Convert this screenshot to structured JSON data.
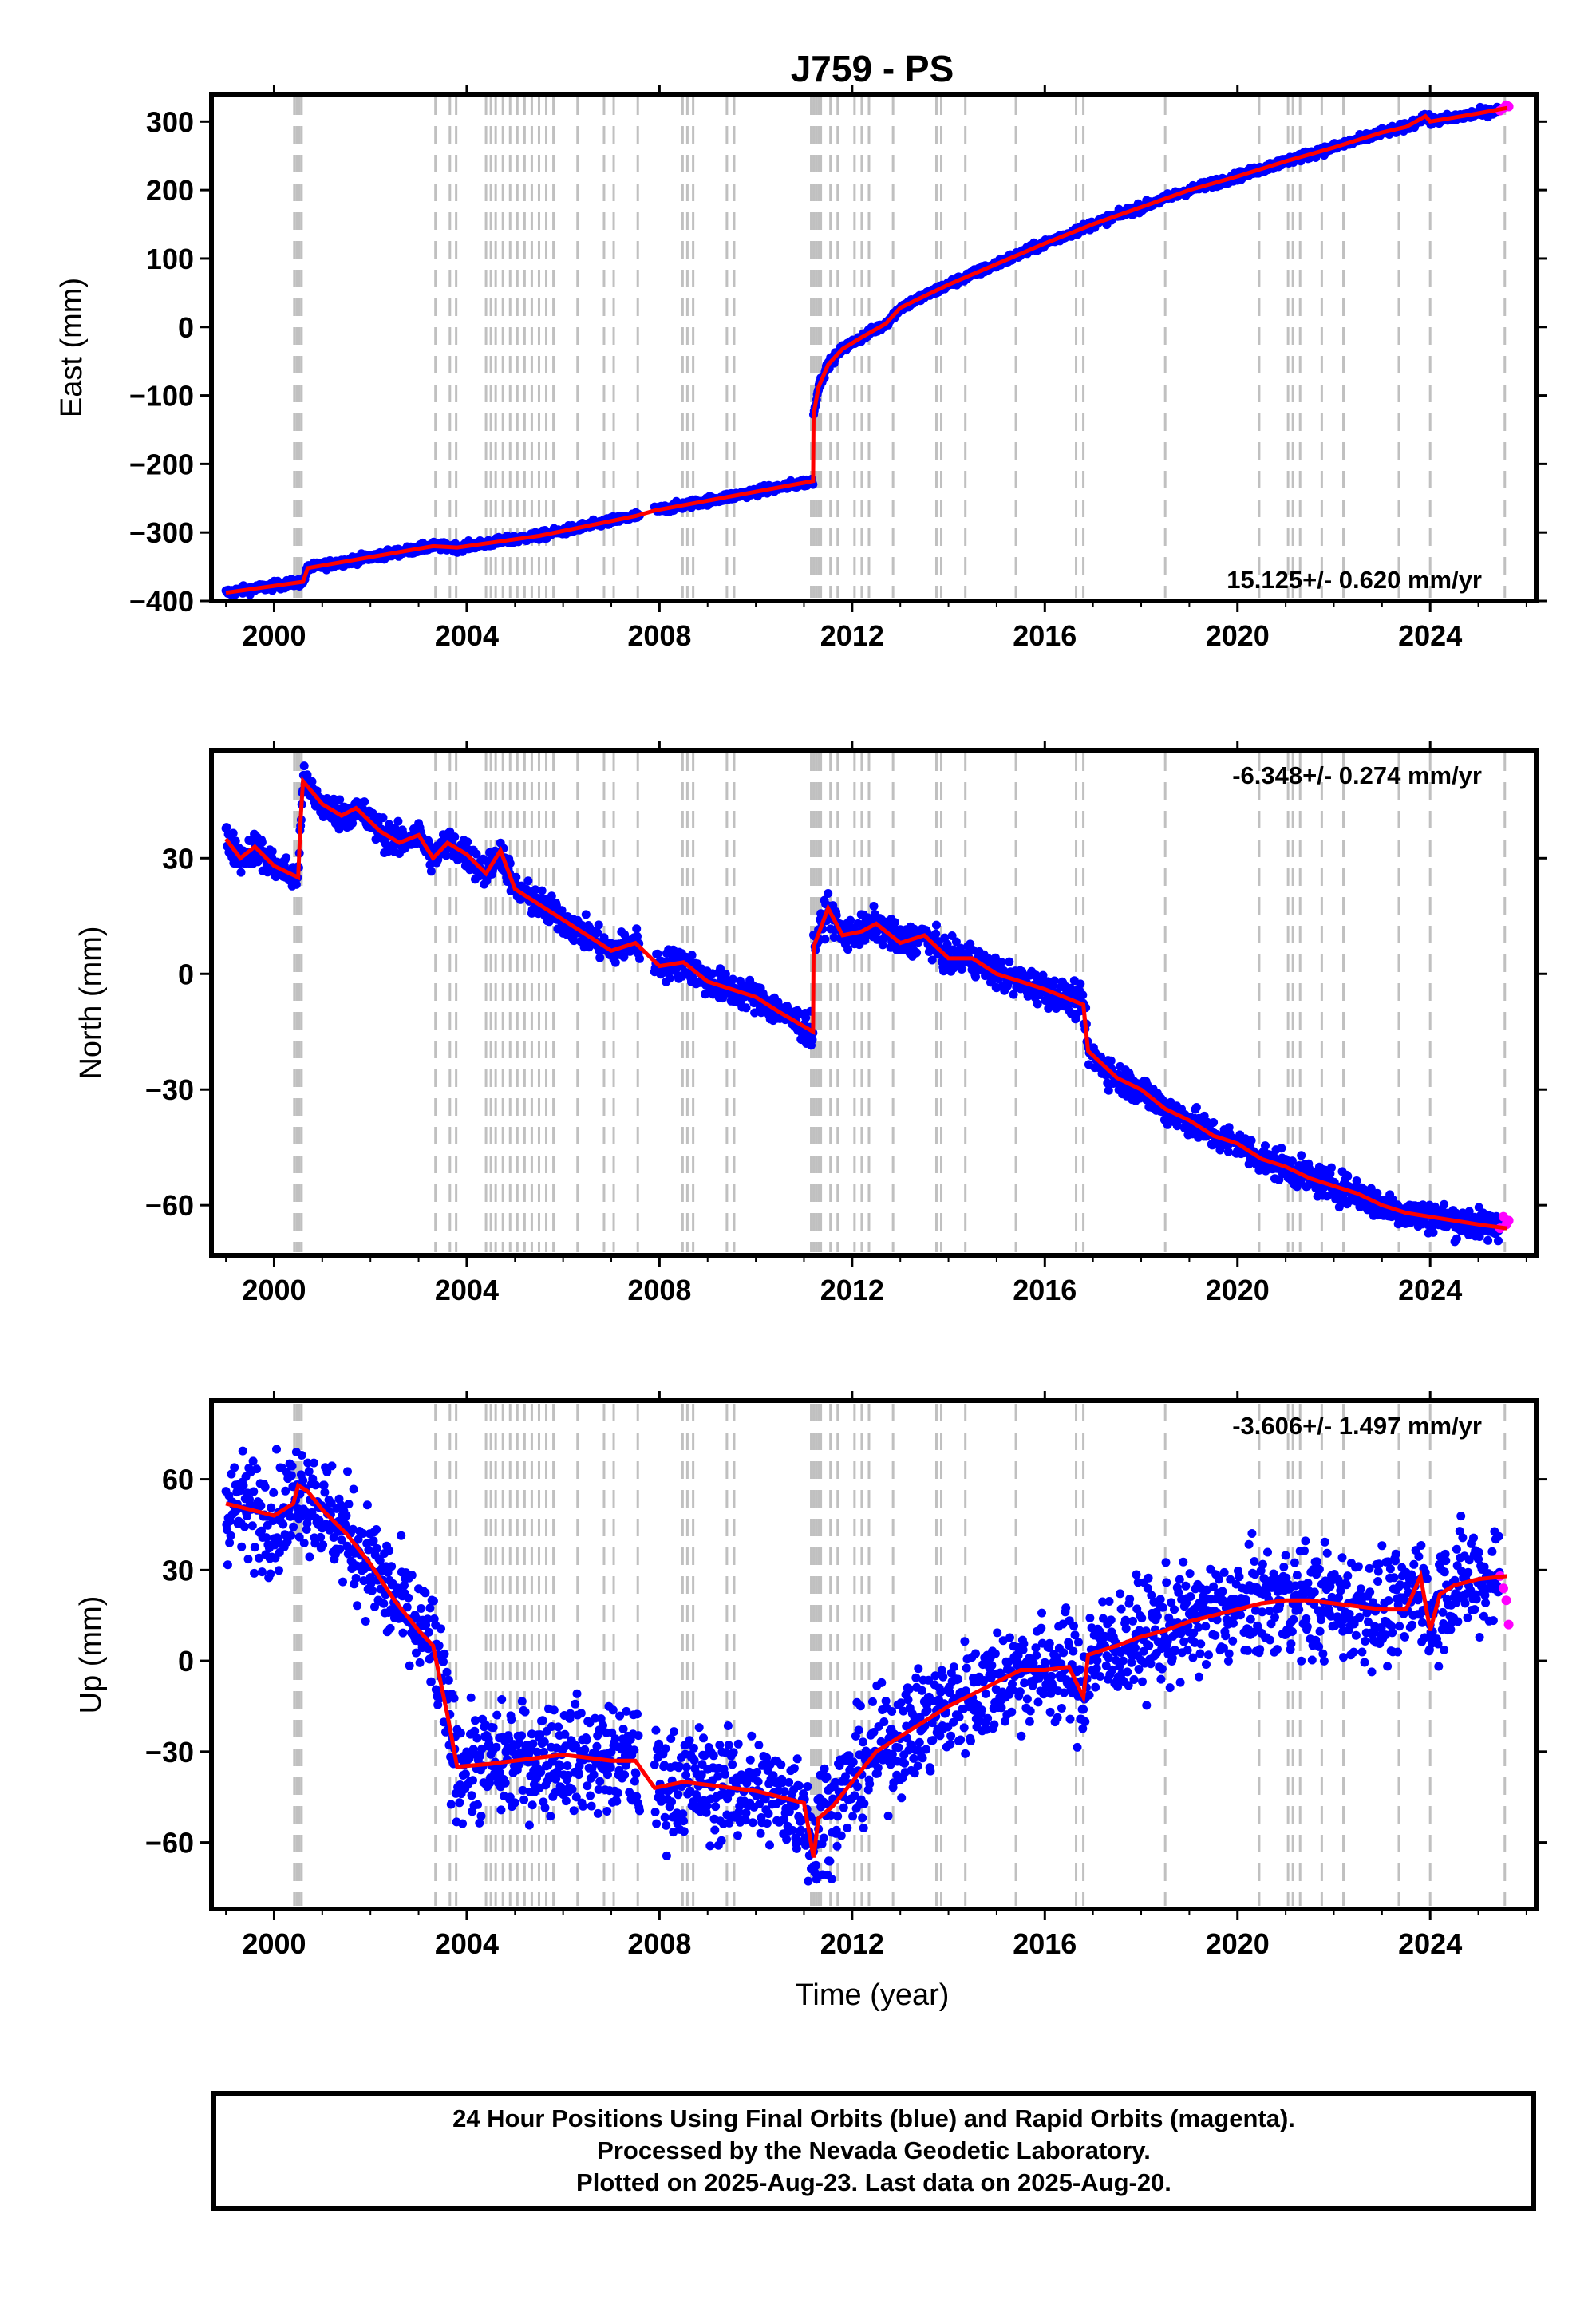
{
  "title": "J759 - PS",
  "xlabel": "Time (year)",
  "footer": {
    "line1": "24 Hour Positions Using Final Orbits (blue) and Rapid Orbits (magenta).",
    "line2": "Processed by the Nevada Geodetic Laboratory.",
    "line3": "Plotted on 2025-Aug-23. Last data on 2025-Aug-20."
  },
  "colors": {
    "final": "#0000ff",
    "rapid": "#ff00ff",
    "model": "#ff0000",
    "step_lines": "#c0c0c0"
  },
  "chart_data": [
    {
      "type": "scatter",
      "ylabel": "East (mm)",
      "rate_label": "15.125+/- 0.620 mm/yr",
      "rate_position": "bottom-right",
      "xlim": [
        1998.7,
        2026.2
      ],
      "ylim": [
        -400,
        340
      ],
      "yticks": [
        300,
        200,
        100,
        0,
        -100,
        -200,
        -300,
        -400
      ],
      "xticks": [
        2000,
        2004,
        2008,
        2012,
        2016,
        2020,
        2024
      ],
      "noise": 3,
      "model_x": [
        1999.0,
        2000.6,
        2000.7,
        2003.3,
        2003.8,
        2005.5,
        2007.5,
        2007.9,
        2011.19,
        2011.2,
        2011.3,
        2011.5,
        2011.8,
        2012.2,
        2012.7,
        2013.0,
        2014.0,
        2015.0,
        2016.0,
        2017.0,
        2018.0,
        2019.0,
        2020.0,
        2021.0,
        2022.0,
        2023.0,
        2023.5,
        2023.9,
        2024.0,
        2025.0,
        2025.6
      ],
      "model_y": [
        -388,
        -372,
        -352,
        -320,
        -322,
        -305,
        -276,
        -268,
        -225,
        -128,
        -88,
        -55,
        -32,
        -15,
        5,
        28,
        62,
        92,
        122,
        150,
        175,
        200,
        220,
        242,
        262,
        284,
        292,
        308,
        300,
        312,
        320
      ],
      "rapid_x": [
        2025.45,
        2025.52,
        2025.58,
        2025.63
      ],
      "rapid_y": [
        316,
        320,
        324,
        322
      ]
    },
    {
      "type": "scatter",
      "ylabel": "North (mm)",
      "rate_label": "-6.348+/- 0.274 mm/yr",
      "rate_position": "top-right",
      "xlim": [
        1998.7,
        2026.2
      ],
      "ylim": [
        -73,
        58
      ],
      "yticks": [
        30,
        0,
        -30,
        -60
      ],
      "xticks": [
        2000,
        2004,
        2008,
        2012,
        2016,
        2020,
        2024
      ],
      "noise": 2,
      "model_x": [
        1999.0,
        1999.3,
        1999.6,
        2000.0,
        2000.5,
        2000.55,
        2000.6,
        2001.0,
        2001.4,
        2001.7,
        2002.2,
        2002.6,
        2003.0,
        2003.3,
        2003.6,
        2004.0,
        2004.4,
        2004.7,
        2005.0,
        2005.5,
        2006.0,
        2006.5,
        2007.0,
        2007.5,
        2008.0,
        2008.5,
        2009.0,
        2009.5,
        2010.0,
        2010.5,
        2011.19,
        2011.2,
        2011.5,
        2011.8,
        2012.2,
        2012.5,
        2013.0,
        2013.5,
        2014.0,
        2014.5,
        2015.0,
        2015.5,
        2016.0,
        2016.6,
        2016.8,
        2016.9,
        2017.5,
        2018.0,
        2018.5,
        2019.0,
        2019.5,
        2020.0,
        2020.5,
        2021.0,
        2021.5,
        2022.0,
        2022.5,
        2023.0,
        2023.5,
        2024.0,
        2024.5,
        2025.0,
        2025.6
      ],
      "model_y": [
        35,
        30,
        33,
        28,
        25,
        40,
        50,
        44,
        41,
        43,
        37,
        34,
        36,
        30,
        34,
        31,
        26,
        32,
        22,
        18,
        14,
        10,
        6,
        8,
        2,
        3,
        -2,
        -4,
        -6,
        -10,
        -15,
        7,
        17,
        10,
        11,
        13,
        8,
        10,
        4,
        4,
        0,
        -2,
        -4,
        -7,
        -8,
        -20,
        -27,
        -30,
        -35,
        -38,
        -42,
        -44,
        -48,
        -50,
        -53,
        -55,
        -57,
        -60,
        -62,
        -63,
        -64,
        -65,
        -66
      ],
      "rapid_x": [
        2025.45,
        2025.52,
        2025.58,
        2025.63
      ],
      "rapid_y": [
        -66,
        -63,
        -65,
        -64
      ]
    },
    {
      "type": "scatter",
      "ylabel": "Up (mm)",
      "rate_label": "-3.606+/- 1.497 mm/yr",
      "rate_position": "top-right",
      "xlim": [
        1998.7,
        2026.2
      ],
      "ylim": [
        -82,
        86
      ],
      "yticks": [
        60,
        30,
        0,
        -30,
        -60
      ],
      "xticks": [
        2000,
        2004,
        2008,
        2012,
        2016,
        2020,
        2024
      ],
      "noise": 9,
      "model_x": [
        1999.0,
        1999.5,
        2000.0,
        2000.4,
        2000.5,
        2000.7,
        2001.0,
        2001.5,
        2002.0,
        2002.5,
        2003.0,
        2003.3,
        2003.6,
        2003.8,
        2004.5,
        2005.0,
        2005.5,
        2006.0,
        2006.5,
        2007.0,
        2007.5,
        2007.9,
        2008.5,
        2009.0,
        2009.5,
        2010.0,
        2010.5,
        2011.0,
        2011.2,
        2011.3,
        2011.6,
        2012.0,
        2012.5,
        2013.0,
        2013.5,
        2014.0,
        2014.5,
        2015.0,
        2015.5,
        2016.0,
        2016.5,
        2016.8,
        2016.9,
        2017.5,
        2018.0,
        2018.5,
        2019.0,
        2019.5,
        2020.0,
        2020.5,
        2021.0,
        2021.5,
        2022.0,
        2022.5,
        2023.0,
        2023.5,
        2023.8,
        2024.0,
        2024.2,
        2024.5,
        2025.0,
        2025.6
      ],
      "model_y": [
        52,
        50,
        48,
        52,
        58,
        56,
        50,
        42,
        32,
        20,
        10,
        5,
        -18,
        -35,
        -34,
        -33,
        -32,
        -31,
        -32,
        -33,
        -33,
        -42,
        -40,
        -41,
        -42,
        -43,
        -45,
        -47,
        -65,
        -52,
        -48,
        -40,
        -30,
        -25,
        -20,
        -15,
        -11,
        -7,
        -3,
        -3,
        -2,
        -12,
        2,
        5,
        8,
        10,
        13,
        15,
        17,
        19,
        20,
        20,
        19,
        18,
        17,
        17,
        28,
        10,
        22,
        25,
        27,
        28
      ],
      "rapid_x": [
        2025.45,
        2025.52,
        2025.58,
        2025.63
      ],
      "rapid_y": [
        28,
        24,
        20,
        12
      ]
    }
  ],
  "step_years": [
    2000.42,
    2000.47,
    2000.52,
    2000.57,
    2003.35,
    2003.65,
    2003.78,
    2004.4,
    2004.5,
    2004.6,
    2004.75,
    2004.9,
    2005.05,
    2005.2,
    2005.35,
    2005.5,
    2005.65,
    2005.8,
    2006.3,
    2006.85,
    2007.05,
    2007.55,
    2008.48,
    2008.58,
    2008.7,
    2009.4,
    2009.55,
    2011.15,
    2011.2,
    2011.25,
    2011.3,
    2011.35,
    2011.55,
    2011.7,
    2012.05,
    2012.2,
    2012.35,
    2012.85,
    2013.75,
    2013.85,
    2014.35,
    2015.4,
    2016.65,
    2016.8,
    2018.5,
    2020.45,
    2021.05,
    2021.15,
    2021.3,
    2021.75,
    2022.2,
    2023.35,
    2024.0,
    2025.55
  ]
}
